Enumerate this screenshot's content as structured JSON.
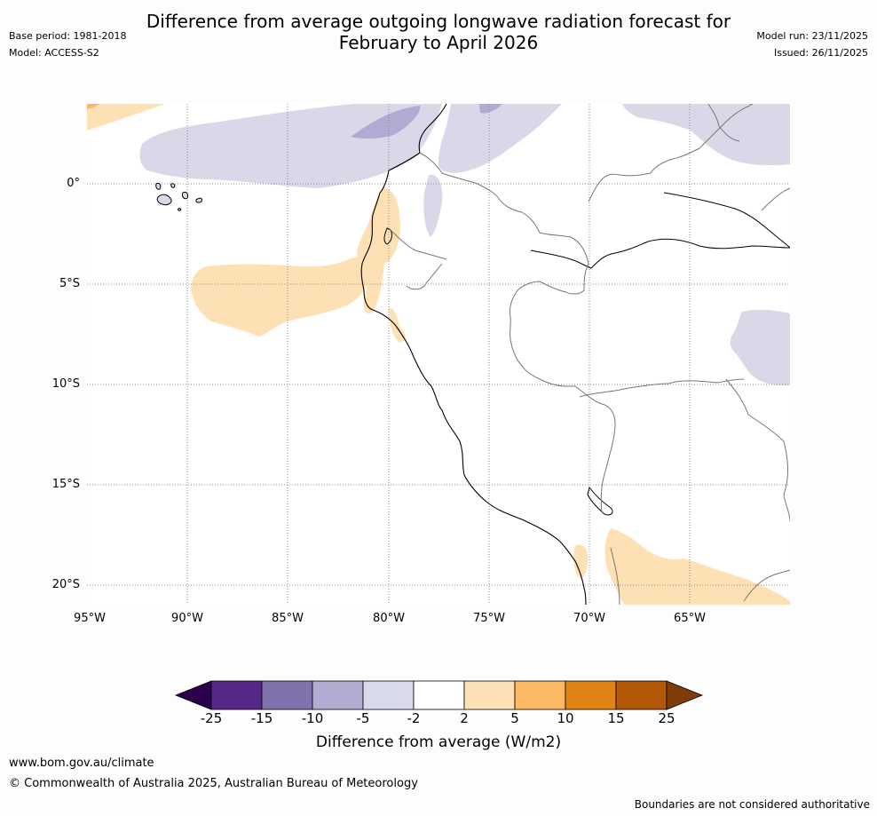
{
  "title": {
    "line1": "Difference from average outgoing longwave radiation forecast for",
    "line2": "February to April 2026"
  },
  "meta": {
    "base_period": "Base period: 1981-2018",
    "model": "Model: ACCESS-S2",
    "model_run": "Model run: 23/11/2025",
    "issued": "Issued: 26/11/2025"
  },
  "map": {
    "lat_labels": [
      "0°",
      "5°S",
      "10°S",
      "15°S",
      "20°S"
    ],
    "lon_labels": [
      "95°W",
      "90°W",
      "85°W",
      "80°W",
      "75°W",
      "70°W",
      "65°W"
    ],
    "colors": {
      "light_purple": "#d8d8e9",
      "mid_purple": "#b1aad2",
      "light_orange": "#fde0b4",
      "mid_orange": "#fbb863"
    }
  },
  "colorbar": {
    "ticks": [
      "-25",
      "-15",
      "-10",
      "-5",
      "-2",
      "2",
      "5",
      "10",
      "15",
      "25"
    ],
    "colors": [
      "#2d004b",
      "#542788",
      "#8073ac",
      "#b2abd2",
      "#d8daeb",
      "#ffffff",
      "#fee0b6",
      "#fdb863",
      "#e08214",
      "#b35806",
      "#7f3b08"
    ],
    "title": "Difference from average (W/m2)"
  },
  "footer": {
    "url": "www.bom.gov.au/climate",
    "copyright": "© Commonwealth of Australia 2025, Australian Bureau of Meteorology",
    "note": "Boundaries are not considered authoritative"
  }
}
